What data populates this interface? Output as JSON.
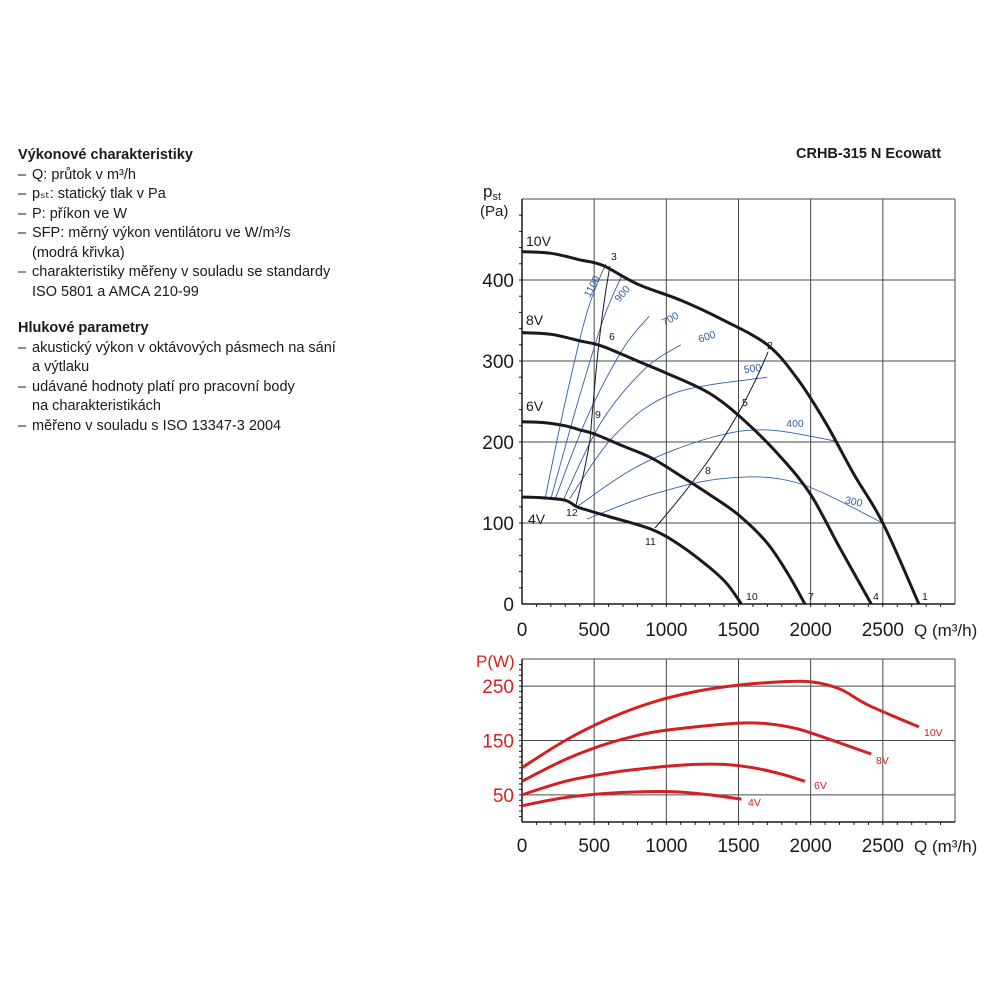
{
  "left_panel": {
    "performance": {
      "heading": "Výkonové charakteristiky",
      "items": [
        "Q: průtok v m³/h",
        "pₛₜ: statický tlak v Pa",
        "P: příkon ve W",
        "SFP: měrný výkon ventilátoru ve W/m³/s",
        "(modrá křivka)",
        "charakteristiky měřeny v souladu se standardy",
        "ISO 5801 a AMCA 210-99"
      ]
    },
    "noise": {
      "heading": "Hlukové parametry",
      "items": [
        "akustický výkon v oktávových pásmech na sání",
        "a výtlaku",
        "udávané hodnoty platí pro pracovní body",
        "na charakteristikách",
        "měřeno v souladu s ISO 13347-3 2004"
      ]
    }
  },
  "model_title": "CRHB-315 N Ecowatt",
  "chart_data": [
    {
      "type": "line",
      "ylabel_main": "pst",
      "ylabel_sub": "st",
      "ylabel_unit": "(Pa)",
      "xlabel": "Q (m³/h)",
      "xlim": [
        0,
        3000
      ],
      "ylim": [
        0,
        500
      ],
      "x_ticks": [
        0,
        500,
        1000,
        1500,
        2000,
        2500
      ],
      "y_ticks": [
        0,
        100,
        200,
        300,
        400
      ],
      "grid": true,
      "series": [
        {
          "name": "10V",
          "color": "#1a1a1a",
          "x": [
            0,
            200,
            400,
            560,
            800,
            1100,
            1400,
            1700,
            1900,
            2100,
            2300,
            2500,
            2750
          ],
          "y": [
            435,
            433,
            425,
            418,
            395,
            375,
            350,
            320,
            280,
            225,
            160,
            100,
            0
          ]
        },
        {
          "name": "8V",
          "color": "#1a1a1a",
          "x": [
            0,
            200,
            400,
            560,
            800,
            1000,
            1300,
            1550,
            1800,
            2000,
            2200,
            2420
          ],
          "y": [
            335,
            333,
            325,
            318,
            300,
            285,
            260,
            225,
            180,
            135,
            70,
            0
          ]
        },
        {
          "name": "6V",
          "color": "#1a1a1a",
          "x": [
            0,
            150,
            300,
            400,
            500,
            700,
            900,
            1100,
            1300,
            1500,
            1700,
            1850,
            1960
          ],
          "y": [
            225,
            224,
            220,
            215,
            210,
            195,
            180,
            158,
            135,
            110,
            75,
            35,
            0
          ]
        },
        {
          "name": "4V",
          "color": "#1a1a1a",
          "x": [
            0,
            150,
            300,
            380,
            450,
            600,
            900,
            1100,
            1300,
            1420,
            1520
          ],
          "y": [
            132,
            131,
            128,
            120,
            116,
            108,
            92,
            72,
            45,
            25,
            0
          ]
        }
      ],
      "sfp_curves": [
        {
          "label": "1100",
          "x": [
            160,
            300,
            450,
            580
          ],
          "y": [
            130,
            250,
            360,
            420
          ]
        },
        {
          "label": "900",
          "x": [
            200,
            380,
            560,
            690
          ],
          "y": [
            130,
            245,
            350,
            405
          ]
        },
        {
          "label": "700",
          "x": [
            230,
            450,
            700,
            880
          ],
          "y": [
            130,
            230,
            315,
            355
          ]
        },
        {
          "label": "600",
          "x": [
            290,
            550,
            850,
            1100
          ],
          "y": [
            130,
            225,
            290,
            320
          ]
        },
        {
          "label": "500",
          "x": [
            330,
            650,
            1050,
            1700
          ],
          "y": [
            130,
            210,
            260,
            280
          ]
        },
        {
          "label": "400",
          "x": [
            380,
            800,
            1300,
            1700,
            2200
          ],
          "y": [
            120,
            170,
            205,
            215,
            200
          ]
        },
        {
          "label": "300",
          "x": [
            450,
            900,
            1400,
            1900,
            2500
          ],
          "y": [
            105,
            135,
            155,
            150,
            100
          ]
        }
      ],
      "curve_labels": [
        "10V",
        "8V",
        "6V",
        "4V"
      ],
      "point_labels": [
        "1",
        "2",
        "3",
        "4",
        "5",
        "6",
        "7",
        "8",
        "9",
        "10",
        "11",
        "12"
      ],
      "x_axis_label": "Q (m³/h)"
    },
    {
      "type": "line",
      "ylabel": "P(W)",
      "xlabel": "Q (m³/h)",
      "xlim": [
        0,
        3000
      ],
      "ylim": [
        0,
        300
      ],
      "x_ticks": [
        0,
        500,
        1000,
        1500,
        2000,
        2500
      ],
      "y_ticks": [
        50,
        150,
        250
      ],
      "grid": true,
      "series": [
        {
          "name": "10V",
          "color": "#d42020",
          "x": [
            0,
            300,
            600,
            900,
            1200,
            1500,
            1800,
            2000,
            2200,
            2400,
            2750
          ],
          "y": [
            100,
            150,
            190,
            220,
            240,
            252,
            258,
            258,
            245,
            215,
            175
          ]
        },
        {
          "name": "8V",
          "color": "#d42020",
          "x": [
            0,
            300,
            600,
            900,
            1200,
            1500,
            1700,
            1900,
            2100,
            2420
          ],
          "y": [
            75,
            115,
            145,
            165,
            175,
            182,
            181,
            172,
            155,
            125
          ]
        },
        {
          "name": "6V",
          "color": "#d42020",
          "x": [
            0,
            300,
            600,
            900,
            1200,
            1400,
            1600,
            1800,
            1960
          ],
          "y": [
            50,
            75,
            90,
            100,
            106,
            106,
            100,
            88,
            75
          ]
        },
        {
          "name": "4V",
          "color": "#d42020",
          "x": [
            0,
            300,
            600,
            900,
            1100,
            1300,
            1520
          ],
          "y": [
            30,
            45,
            53,
            56,
            55,
            50,
            42
          ]
        }
      ],
      "curve_labels": [
        "10V",
        "8V",
        "6V",
        "4V"
      ],
      "x_axis_label": "Q (m³/h)"
    }
  ]
}
